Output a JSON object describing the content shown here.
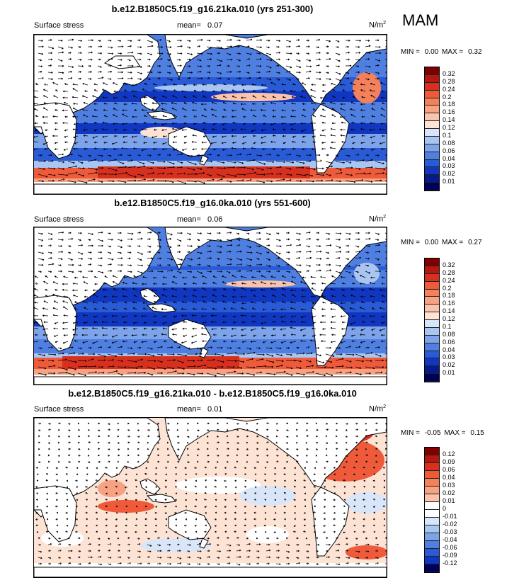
{
  "season": "MAM",
  "panels": [
    {
      "title": "b.e12.B1850C5.f19_g16.21ka.010 (yrs 251-300)",
      "variable": "Surface stress",
      "mean_label": "mean=",
      "mean_value": "0.07",
      "units": "N/m",
      "units_exp": "2",
      "min_label": "MIN =",
      "min_value": "0.00",
      "max_label": "MAX =",
      "max_value": "0.32",
      "colorbar_labels": [
        "0.32",
        "0.28",
        "0.24",
        "0.2",
        "0.18",
        "0.16",
        "0.14",
        "0.12",
        "0.1",
        "0.08",
        "0.06",
        "0.04",
        "0.03",
        "0.02",
        "0.01"
      ]
    },
    {
      "title": "b.e12.B1850C5.f19_g16.0ka.010 (yrs 551-600)",
      "variable": "Surface stress",
      "mean_label": "mean=",
      "mean_value": "0.06",
      "units": "N/m",
      "units_exp": "2",
      "min_label": "MIN =",
      "min_value": "0.00",
      "max_label": "MAX =",
      "max_value": "0.27",
      "colorbar_labels": [
        "0.32",
        "0.28",
        "0.24",
        "0.2",
        "0.18",
        "0.16",
        "0.14",
        "0.12",
        "0.1",
        "0.08",
        "0.06",
        "0.04",
        "0.03",
        "0.02",
        "0.01"
      ]
    },
    {
      "title": "b.e12.B1850C5.f19_g16.21ka.010 - b.e12.B1850C5.f19_g16.0ka.010",
      "variable": "Surface stress",
      "mean_label": "mean=",
      "mean_value": "0.01",
      "units": "N/m",
      "units_exp": "2",
      "min_label": "MIN =",
      "min_value": "-0.05",
      "max_label": "MAX =",
      "max_value": "0.15",
      "colorbar_labels": [
        "0.12",
        "0.09",
        "0.06",
        "0.04",
        "0.03",
        "0.02",
        "0.01",
        "0",
        "-0.01",
        "-0.02",
        "-0.03",
        "-0.04",
        "-0.06",
        "-0.09",
        "-0.12"
      ]
    }
  ],
  "colors": {
    "abs_scale": [
      "#7f0000",
      "#b2180f",
      "#d7301f",
      "#ef5a3a",
      "#f4805c",
      "#f7a283",
      "#fac3aa",
      "#fde3d4",
      "#d9e6fa",
      "#a9c6f2",
      "#7da4ea",
      "#4f7fe0",
      "#2a5bd6",
      "#1136c0",
      "#061a8c",
      "#00005a"
    ],
    "diff_scale": [
      "#7f0000",
      "#b2180f",
      "#d7301f",
      "#ef5a3a",
      "#f4805c",
      "#f7a283",
      "#fac3aa",
      "#ffffff",
      "#ffffff",
      "#d9e6fa",
      "#a9c6f2",
      "#7da4ea",
      "#4f7fe0",
      "#2a5bd6",
      "#1136c0",
      "#00005a"
    ]
  }
}
